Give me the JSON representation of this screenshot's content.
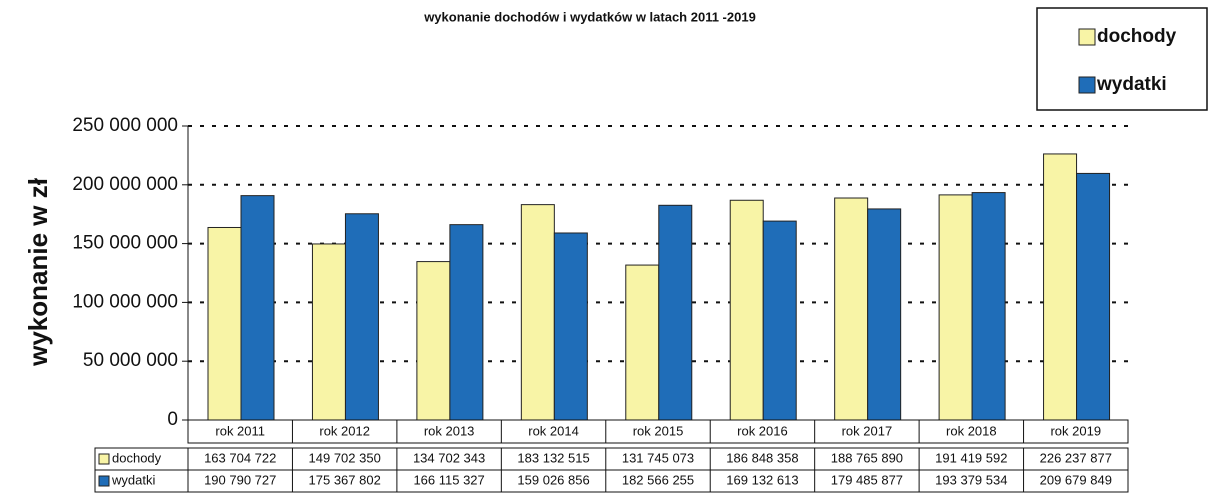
{
  "chart_data": {
    "type": "bar",
    "title": "wykonanie dochodów i wydatków w latach 2011 -2019",
    "y_label": "wykonanie w zł",
    "categories": [
      "rok 2011",
      "rok 2012",
      "rok 2013",
      "rok 2014",
      "rok 2015",
      "rok 2016",
      "rok 2017",
      "rok 2018",
      "rok 2019"
    ],
    "series": [
      {
        "name": "dochody",
        "color": "#f8f4a6",
        "values": [
          163704722,
          149702350,
          134702343,
          183132515,
          131745073,
          186848358,
          188765890,
          191419592,
          226237877
        ],
        "value_labels": [
          "163 704 722",
          "149 702 350",
          "134 702 343",
          "183 132 515",
          "131 745 073",
          "186 848 358",
          "188 765 890",
          "191 419 592",
          "226 237 877"
        ]
      },
      {
        "name": "wydatki",
        "color": "#1f6db8",
        "values": [
          190790727,
          175367802,
          166115327,
          159026856,
          182566255,
          169132613,
          179485877,
          193379534,
          209679849
        ],
        "value_labels": [
          "190 790 727",
          "175 367 802",
          "166 115 327",
          "159 026 856",
          "182 566 255",
          "169 132 613",
          "179 485 877",
          "193 379 534",
          "209 679 849"
        ]
      }
    ],
    "ylim": [
      0,
      250000000
    ],
    "yticks": [
      0,
      {
        "value": 50000000,
        "label": "50 000 000"
      },
      {
        "value": 100000000,
        "label": "100 000 000"
      },
      {
        "value": 150000000,
        "label": "150 000 000"
      },
      {
        "value": 200000000,
        "label": "200 000 000"
      },
      {
        "value": 250000000,
        "label": "250 000 000"
      }
    ],
    "grid": true,
    "legend": "top-right"
  }
}
